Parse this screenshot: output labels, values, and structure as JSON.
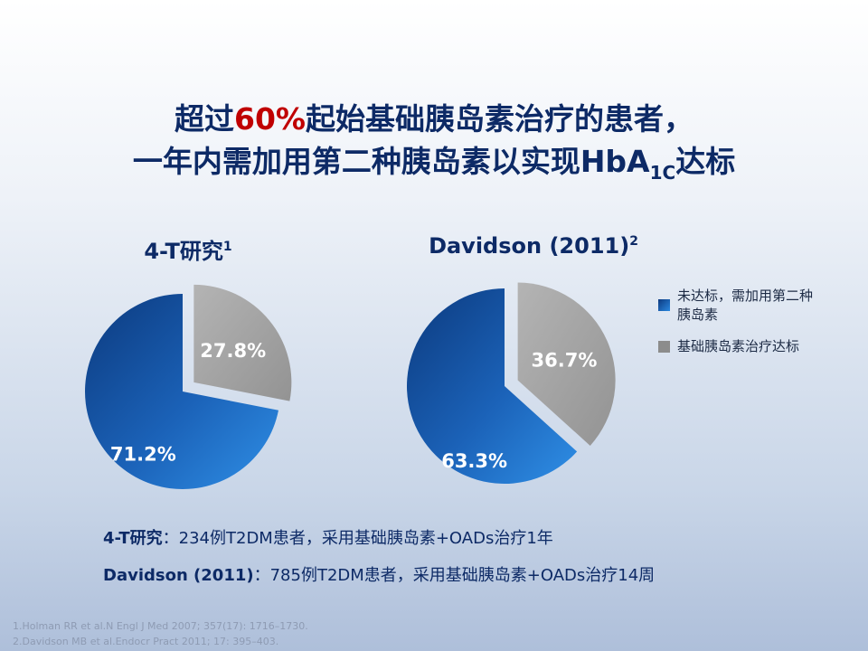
{
  "title": {
    "line1_pre": "超过",
    "line1_highlight": "60%",
    "line1_post": "起始基础胰岛素治疗的患者，",
    "line2_pre": "一年内需加用第二种胰岛素以实现HbA",
    "line2_sub": "1C",
    "line2_post": "达标"
  },
  "legend": [
    {
      "label": "未达标，需加用第二种胰岛素",
      "color": "#1f6fc8"
    },
    {
      "label": "基础胰岛素治疗达标",
      "color": "#9a9a9a"
    }
  ],
  "chart_data": [
    {
      "type": "pie",
      "title": "4-T研究",
      "title_sup": "1",
      "slices": [
        {
          "label": "71.2%",
          "value": 71.2,
          "series": "未达标，需加用第二种胰岛素",
          "color": "#1f6fc8"
        },
        {
          "label": "27.8%",
          "value": 27.8,
          "series": "基础胰岛素治疗达标",
          "color": "#9a9a9a"
        }
      ]
    },
    {
      "type": "pie",
      "title": "Davidson (2011)",
      "title_sup": "2",
      "slices": [
        {
          "label": "63.3%",
          "value": 63.3,
          "series": "未达标，需加用第二种胰岛素",
          "color": "#1f6fc8"
        },
        {
          "label": "36.7%",
          "value": 36.7,
          "series": "基础胰岛素治疗达标",
          "color": "#9a9a9a"
        }
      ]
    }
  ],
  "studies": [
    {
      "name": "4-T研究",
      "desc": "：234例T2DM患者，采用基础胰岛素+OADs治疗1年"
    },
    {
      "name": "Davidson (2011)",
      "desc": "：785例T2DM患者，采用基础胰岛素+OADs治疗14周"
    }
  ],
  "references": [
    "1.Holman RR et al.N Engl J Med 2007; 357(17): 1716–1730.",
    "2.Davidson MB et al.Endocr Pract 2011; 17: 395–403."
  ]
}
